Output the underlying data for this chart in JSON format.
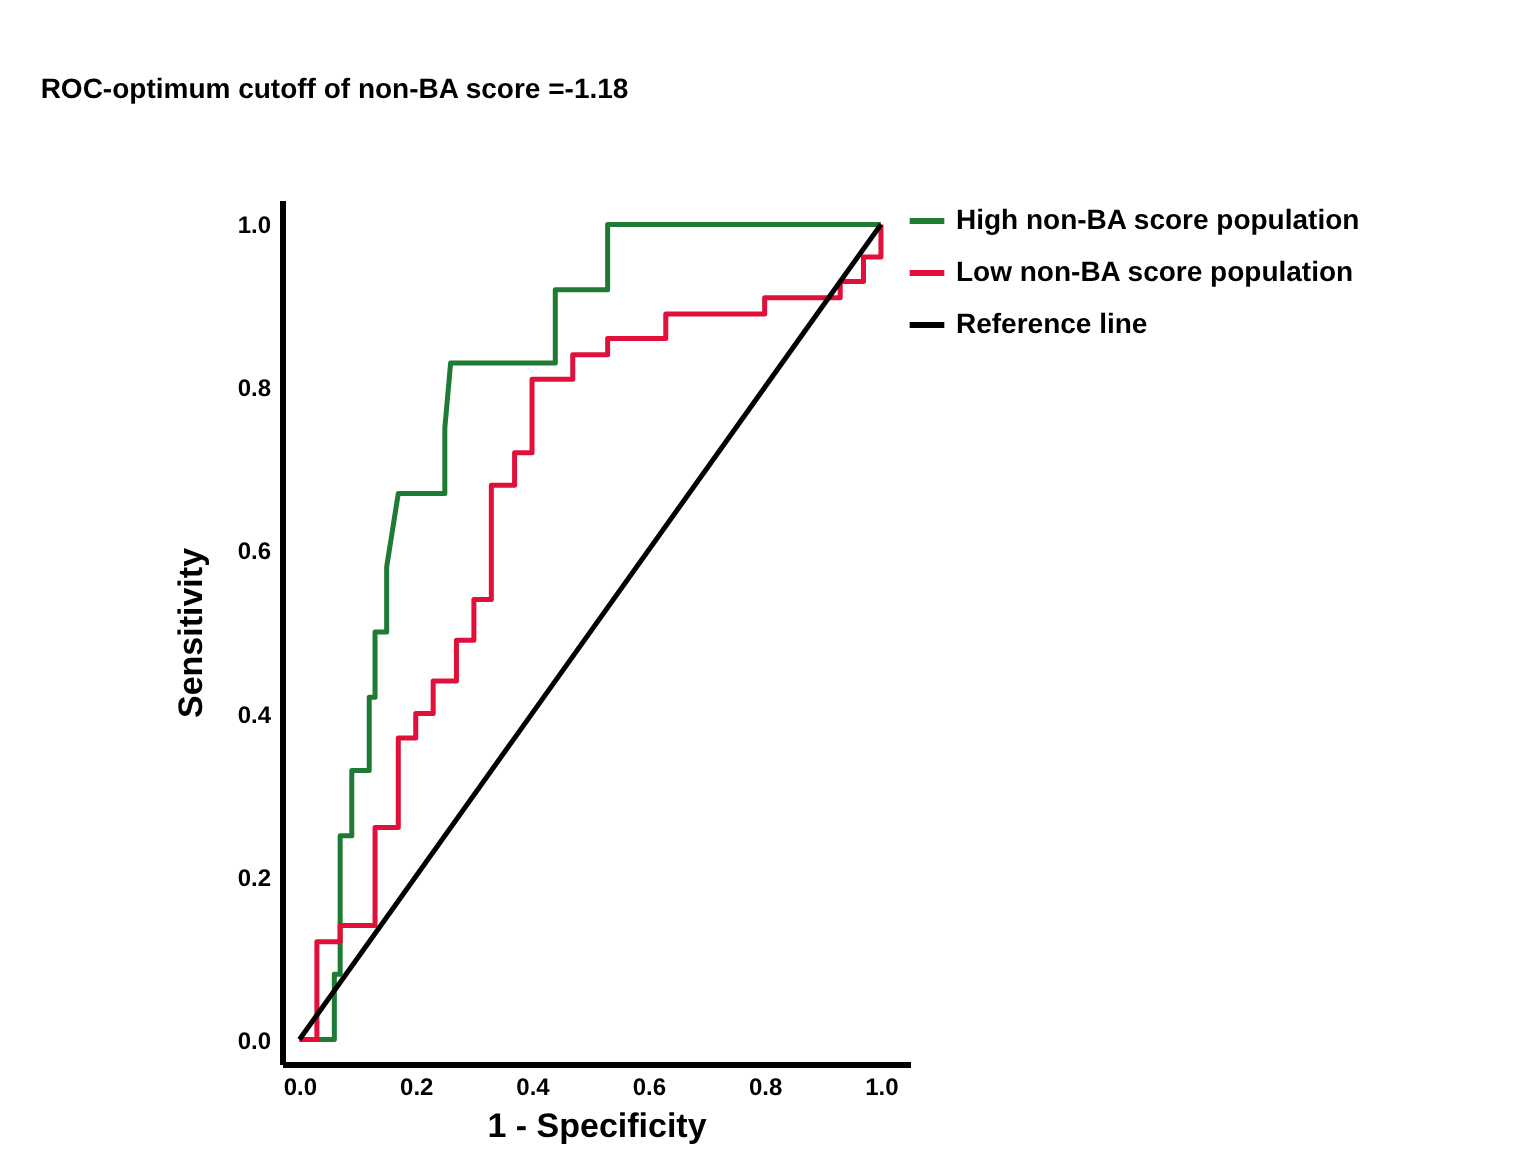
{
  "chart_data": {
    "type": "line",
    "title": "ROC-optimum cutoff of non-BA score =-1.18",
    "xlabel": "1 - Specificity",
    "ylabel": "Sensitivity",
    "series": [
      {
        "name": "High non-BA score population",
        "color": "#1e7b34",
        "x": [
          0,
          0.06,
          0.06,
          0.07,
          0.07,
          0.09,
          0.09,
          0.12,
          0.12,
          0.13,
          0.13,
          0.15,
          0.15,
          0.15,
          0.17,
          0.25,
          0.25,
          0.25,
          0.26,
          0.44,
          0.44,
          0.53,
          0.53,
          1.0
        ],
        "values": [
          0,
          0,
          0.08,
          0.08,
          0.25,
          0.25,
          0.33,
          0.33,
          0.42,
          0.42,
          0.5,
          0.5,
          0.58,
          0.58,
          0.67,
          0.67,
          0.75,
          0.75,
          0.83,
          0.83,
          0.92,
          0.92,
          1.0,
          1.0
        ]
      },
      {
        "name": "Low non-BA score population",
        "color": "#e0103a",
        "x": [
          0,
          0.03,
          0.03,
          0.07,
          0.07,
          0.13,
          0.13,
          0.17,
          0.17,
          0.2,
          0.2,
          0.23,
          0.23,
          0.27,
          0.27,
          0.3,
          0.3,
          0.33,
          0.33,
          0.37,
          0.37,
          0.4,
          0.4,
          0.47,
          0.47,
          0.53,
          0.53,
          0.63,
          0.63,
          0.8,
          0.8,
          0.93,
          0.93,
          0.97,
          0.97,
          1.0,
          1.0
        ],
        "values": [
          0,
          0,
          0.12,
          0.12,
          0.14,
          0.14,
          0.26,
          0.26,
          0.37,
          0.37,
          0.4,
          0.4,
          0.44,
          0.44,
          0.49,
          0.49,
          0.54,
          0.54,
          0.68,
          0.68,
          0.72,
          0.72,
          0.81,
          0.81,
          0.84,
          0.84,
          0.86,
          0.86,
          0.89,
          0.89,
          0.91,
          0.91,
          0.93,
          0.93,
          0.96,
          0.96,
          1.0
        ]
      },
      {
        "name": "Reference line",
        "color": "#000000",
        "x": [
          0,
          1.0
        ],
        "values": [
          0,
          1.0
        ]
      }
    ],
    "xlim": [
      -0.03,
      1.05
    ],
    "ylim": [
      -0.03,
      1.03
    ],
    "xticks": [
      {
        "value": 0,
        "label": "0.0"
      },
      0.2,
      0.4,
      0.6,
      0.8,
      {
        "value": 1,
        "label": "1.0"
      }
    ],
    "yticks": [
      {
        "value": 0,
        "label": "0.0"
      },
      0.2,
      0.4,
      0.6,
      0.8,
      {
        "value": 1,
        "label": "1.0"
      }
    ],
    "grid": false,
    "legend": "top right",
    "marker": "none",
    "line_style": "solid"
  }
}
